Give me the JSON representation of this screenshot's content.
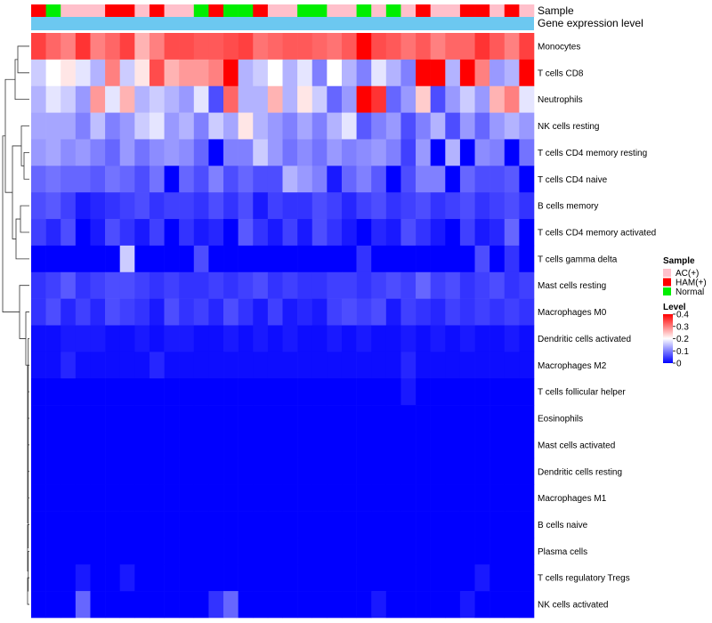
{
  "chart_data": {
    "type": "heatmap",
    "annotation_labels": [
      "Sample",
      "Gene expression level"
    ],
    "row_labels": [
      "Monocytes",
      "T cells CD8",
      "Neutrophils",
      "NK cells resting",
      "T cells CD4 memory resting",
      "T cells CD4 naive",
      "B cells memory",
      "T cells CD4 memory activated",
      "T cells gamma delta",
      "Mast cells resting",
      "Macrophages M0",
      "Dendritic cells activated",
      "Macrophages M2",
      "T cells follicular helper",
      "Eosinophils",
      "Mast cells activated",
      "Dendritic cells resting",
      "Macrophages M1",
      "B cells naive",
      "Plasma cells",
      "T cells regulatory  Tregs",
      "NK cells activated"
    ],
    "sample_groups": [
      "HAM(+)",
      "Normal",
      "AC(+)",
      "AC(+)",
      "AC(+)",
      "HAM(+)",
      "HAM(+)",
      "AC(+)",
      "HAM(+)",
      "AC(+)",
      "AC(+)",
      "Normal",
      "HAM(+)",
      "Normal",
      "Normal",
      "HAM(+)",
      "AC(+)",
      "AC(+)",
      "Normal",
      "Normal",
      "AC(+)",
      "AC(+)",
      "Normal",
      "AC(+)",
      "Normal",
      "AC(+)",
      "HAM(+)",
      "AC(+)",
      "AC(+)",
      "HAM(+)",
      "HAM(+)",
      "AC(+)",
      "HAM(+)",
      "AC(+)"
    ],
    "values": [
      [
        0.35,
        0.32,
        0.3,
        0.36,
        0.3,
        0.32,
        0.35,
        0.26,
        0.3,
        0.34,
        0.34,
        0.33,
        0.33,
        0.34,
        0.35,
        0.31,
        0.32,
        0.33,
        0.33,
        0.32,
        0.31,
        0.33,
        0.4,
        0.34,
        0.33,
        0.31,
        0.33,
        0.3,
        0.32,
        0.32,
        0.36,
        0.33,
        0.3,
        0.35
      ],
      [
        0.16,
        0.2,
        0.22,
        0.18,
        0.14,
        0.3,
        0.16,
        0.22,
        0.34,
        0.26,
        0.28,
        0.28,
        0.3,
        0.4,
        0.14,
        0.16,
        0.2,
        0.14,
        0.18,
        0.1,
        0.2,
        0.14,
        0.1,
        0.18,
        0.14,
        0.1,
        0.4,
        0.4,
        0.14,
        0.4,
        0.3,
        0.12,
        0.14,
        0.4
      ],
      [
        0.14,
        0.18,
        0.16,
        0.12,
        0.28,
        0.18,
        0.26,
        0.14,
        0.16,
        0.14,
        0.12,
        0.18,
        0.06,
        0.32,
        0.14,
        0.14,
        0.26,
        0.14,
        0.22,
        0.16,
        0.08,
        0.12,
        0.4,
        0.36,
        0.08,
        0.12,
        0.24,
        0.06,
        0.12,
        0.16,
        0.12,
        0.26,
        0.3,
        0.18
      ],
      [
        0.13,
        0.13,
        0.13,
        0.1,
        0.15,
        0.1,
        0.12,
        0.16,
        0.18,
        0.12,
        0.14,
        0.1,
        0.16,
        0.13,
        0.22,
        0.14,
        0.12,
        0.1,
        0.13,
        0.1,
        0.14,
        0.18,
        0.07,
        0.1,
        0.12,
        0.06,
        0.1,
        0.14,
        0.06,
        0.12,
        0.08,
        0.12,
        0.14,
        0.12
      ],
      [
        0.12,
        0.13,
        0.11,
        0.12,
        0.1,
        0.08,
        0.12,
        0.09,
        0.11,
        0.12,
        0.11,
        0.08,
        0.0,
        0.1,
        0.1,
        0.16,
        0.12,
        0.09,
        0.11,
        0.09,
        0.12,
        0.1,
        0.11,
        0.12,
        0.1,
        0.05,
        0.12,
        0.0,
        0.14,
        0.0,
        0.11,
        0.1,
        0.0,
        0.09
      ],
      [
        0.08,
        0.09,
        0.08,
        0.08,
        0.07,
        0.09,
        0.08,
        0.06,
        0.09,
        0.0,
        0.08,
        0.06,
        0.1,
        0.06,
        0.08,
        0.06,
        0.06,
        0.14,
        0.12,
        0.1,
        0.02,
        0.08,
        0.1,
        0.07,
        0.0,
        0.06,
        0.1,
        0.1,
        0.0,
        0.08,
        0.06,
        0.06,
        0.07,
        0.0
      ],
      [
        0.06,
        0.07,
        0.05,
        0.02,
        0.03,
        0.04,
        0.05,
        0.06,
        0.04,
        0.05,
        0.05,
        0.04,
        0.06,
        0.04,
        0.06,
        0.02,
        0.05,
        0.04,
        0.04,
        0.06,
        0.05,
        0.03,
        0.05,
        0.06,
        0.04,
        0.05,
        0.06,
        0.04,
        0.05,
        0.06,
        0.04,
        0.05,
        0.06,
        0.04
      ],
      [
        0.05,
        0.03,
        0.06,
        0.0,
        0.02,
        0.06,
        0.04,
        0.02,
        0.05,
        0.0,
        0.04,
        0.02,
        0.03,
        0.0,
        0.07,
        0.04,
        0.02,
        0.05,
        0.02,
        0.06,
        0.04,
        0.02,
        0.0,
        0.03,
        0.02,
        0.06,
        0.04,
        0.02,
        0.0,
        0.05,
        0.02,
        0.03,
        0.08,
        0.0
      ],
      [
        0.0,
        0.0,
        0.0,
        0.0,
        0.0,
        0.0,
        0.16,
        0.0,
        0.0,
        0.0,
        0.0,
        0.06,
        0.0,
        0.0,
        0.0,
        0.0,
        0.0,
        0.0,
        0.0,
        0.0,
        0.0,
        0.0,
        0.04,
        0.0,
        0.0,
        0.0,
        0.0,
        0.0,
        0.0,
        0.0,
        0.06,
        0.0,
        0.04,
        0.0
      ],
      [
        0.04,
        0.05,
        0.07,
        0.04,
        0.05,
        0.06,
        0.06,
        0.05,
        0.04,
        0.05,
        0.04,
        0.04,
        0.05,
        0.04,
        0.05,
        0.06,
        0.04,
        0.05,
        0.04,
        0.04,
        0.05,
        0.05,
        0.04,
        0.05,
        0.06,
        0.05,
        0.08,
        0.05,
        0.06,
        0.04,
        0.05,
        0.06,
        0.04,
        0.05
      ],
      [
        0.04,
        0.06,
        0.03,
        0.05,
        0.03,
        0.06,
        0.05,
        0.04,
        0.02,
        0.06,
        0.04,
        0.05,
        0.03,
        0.06,
        0.04,
        0.02,
        0.05,
        0.02,
        0.03,
        0.02,
        0.05,
        0.06,
        0.05,
        0.06,
        0.02,
        0.05,
        0.04,
        0.03,
        0.05,
        0.04,
        0.05,
        0.04,
        0.05,
        0.04
      ],
      [
        0.01,
        0.01,
        0.02,
        0.02,
        0.02,
        0.01,
        0.01,
        0.02,
        0.01,
        0.02,
        0.02,
        0.01,
        0.01,
        0.02,
        0.01,
        0.02,
        0.01,
        0.02,
        0.01,
        0.01,
        0.02,
        0.01,
        0.02,
        0.01,
        0.01,
        0.02,
        0.01,
        0.02,
        0.01,
        0.02,
        0.01,
        0.01,
        0.02,
        0.01
      ],
      [
        0.01,
        0.01,
        0.03,
        0.01,
        0.01,
        0.01,
        0.01,
        0.01,
        0.03,
        0.01,
        0.01,
        0.01,
        0.01,
        0.01,
        0.01,
        0.01,
        0.01,
        0.01,
        0.01,
        0.01,
        0.01,
        0.01,
        0.01,
        0.01,
        0.01,
        0.03,
        0.01,
        0.01,
        0.01,
        0.01,
        0.01,
        0.01,
        0.01,
        0.01
      ],
      [
        0.0,
        0.0,
        0.0,
        0.0,
        0.0,
        0.0,
        0.0,
        0.0,
        0.0,
        0.0,
        0.0,
        0.0,
        0.0,
        0.0,
        0.0,
        0.0,
        0.0,
        0.0,
        0.0,
        0.0,
        0.0,
        0.0,
        0.0,
        0.0,
        0.0,
        0.02,
        0.0,
        0.0,
        0.0,
        0.0,
        0.0,
        0.0,
        0.0,
        0.0
      ],
      [
        0.0,
        0.0,
        0.0,
        0.0,
        0.0,
        0.0,
        0.0,
        0.0,
        0.0,
        0.0,
        0.0,
        0.0,
        0.0,
        0.0,
        0.0,
        0.0,
        0.0,
        0.0,
        0.0,
        0.0,
        0.0,
        0.0,
        0.0,
        0.0,
        0.0,
        0.0,
        0.0,
        0.0,
        0.0,
        0.0,
        0.0,
        0.0,
        0.0,
        0.0
      ],
      [
        0.0,
        0.0,
        0.0,
        0.0,
        0.0,
        0.0,
        0.0,
        0.0,
        0.0,
        0.0,
        0.0,
        0.0,
        0.0,
        0.0,
        0.0,
        0.0,
        0.0,
        0.0,
        0.0,
        0.0,
        0.0,
        0.0,
        0.0,
        0.0,
        0.0,
        0.0,
        0.0,
        0.0,
        0.0,
        0.0,
        0.0,
        0.0,
        0.0,
        0.0
      ],
      [
        0.0,
        0.0,
        0.0,
        0.0,
        0.0,
        0.0,
        0.0,
        0.0,
        0.0,
        0.0,
        0.0,
        0.0,
        0.0,
        0.0,
        0.0,
        0.0,
        0.0,
        0.0,
        0.0,
        0.0,
        0.0,
        0.0,
        0.0,
        0.0,
        0.0,
        0.0,
        0.0,
        0.0,
        0.0,
        0.0,
        0.0,
        0.0,
        0.0,
        0.0
      ],
      [
        0.0,
        0.0,
        0.0,
        0.0,
        0.0,
        0.0,
        0.0,
        0.0,
        0.0,
        0.0,
        0.0,
        0.0,
        0.0,
        0.0,
        0.0,
        0.0,
        0.0,
        0.0,
        0.0,
        0.0,
        0.0,
        0.0,
        0.0,
        0.0,
        0.0,
        0.0,
        0.0,
        0.0,
        0.0,
        0.0,
        0.0,
        0.0,
        0.0,
        0.0
      ],
      [
        0.0,
        0.0,
        0.0,
        0.0,
        0.0,
        0.0,
        0.0,
        0.0,
        0.0,
        0.0,
        0.0,
        0.0,
        0.0,
        0.0,
        0.0,
        0.0,
        0.0,
        0.0,
        0.0,
        0.0,
        0.0,
        0.0,
        0.0,
        0.0,
        0.0,
        0.0,
        0.0,
        0.0,
        0.0,
        0.0,
        0.0,
        0.0,
        0.0,
        0.0
      ],
      [
        0.0,
        0.0,
        0.0,
        0.0,
        0.0,
        0.0,
        0.0,
        0.0,
        0.0,
        0.0,
        0.0,
        0.0,
        0.0,
        0.0,
        0.0,
        0.0,
        0.0,
        0.0,
        0.0,
        0.0,
        0.0,
        0.0,
        0.0,
        0.0,
        0.0,
        0.0,
        0.0,
        0.0,
        0.0,
        0.0,
        0.0,
        0.0,
        0.0,
        0.0
      ],
      [
        0.0,
        0.0,
        0.0,
        0.02,
        0.0,
        0.0,
        0.02,
        0.0,
        0.0,
        0.0,
        0.0,
        0.0,
        0.0,
        0.0,
        0.0,
        0.0,
        0.0,
        0.0,
        0.0,
        0.0,
        0.0,
        0.0,
        0.0,
        0.0,
        0.0,
        0.0,
        0.0,
        0.0,
        0.0,
        0.0,
        0.02,
        0.0,
        0.0,
        0.0
      ],
      [
        0.0,
        0.0,
        0.0,
        0.08,
        0.0,
        0.0,
        0.0,
        0.0,
        0.0,
        0.0,
        0.0,
        0.0,
        0.04,
        0.08,
        0.0,
        0.0,
        0.0,
        0.0,
        0.0,
        0.0,
        0.0,
        0.0,
        0.0,
        0.02,
        0.0,
        0.0,
        0.0,
        0.0,
        0.0,
        0.02,
        0.0,
        0.0,
        0.0,
        0.0
      ]
    ],
    "scale": {
      "min": 0,
      "mid": 0.2,
      "max": 0.4,
      "low_color": "#0000ff",
      "mid_color": "#ffffff",
      "high_color": "#ff0000"
    },
    "legend": {
      "sample_title": "Sample",
      "sample_entries": [
        {
          "label": "AC(+)",
          "color": "#ffc0cb"
        },
        {
          "label": "HAM(+)",
          "color": "#ff0000"
        },
        {
          "label": "Normal",
          "color": "#00ee00"
        }
      ],
      "level_title": "Level",
      "level_ticks": [
        0.4,
        0.3,
        0.2,
        0.1,
        0
      ],
      "placement": "right"
    },
    "gene_expression_color": "#6cc8f0"
  }
}
